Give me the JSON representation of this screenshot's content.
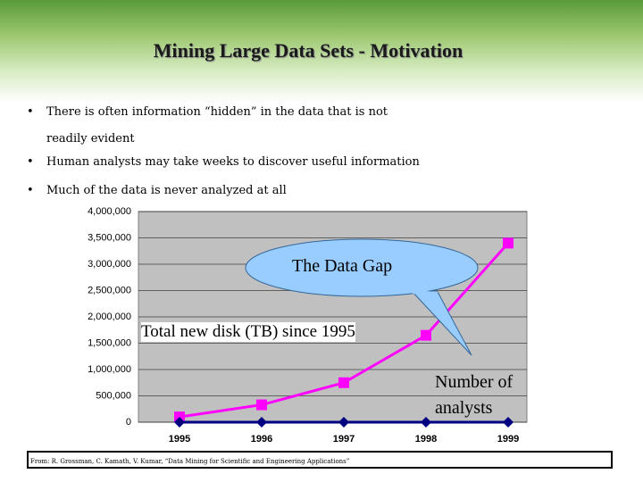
{
  "title": "Mining Large Data Sets - Motivation",
  "bullets": [
    "There is often information “hidden” in the data that is not readily evident",
    "Human analysts may take weeks to discover useful information",
    "Much of the data is never analyzed at all"
  ],
  "chart_data": {
    "type": "line",
    "categories": [
      "1995",
      "1996",
      "1997",
      "1998",
      "1999"
    ],
    "series": [
      {
        "name": "Total new disk (TB) since 1995",
        "color": "#ff00ff",
        "marker": "square",
        "values": [
          100000,
          330000,
          750000,
          1650000,
          3400000
        ]
      },
      {
        "name": "Number of analysts",
        "color": "#000080",
        "marker": "diamond",
        "values": [
          0,
          0,
          0,
          0,
          0
        ]
      }
    ],
    "ylim": [
      0,
      4000000
    ],
    "yticks": [
      {
        "value": 0,
        "label": "0"
      },
      {
        "value": 500000,
        "label": "500,000"
      },
      {
        "value": 1000000,
        "label": "1,000,000"
      },
      {
        "value": 1500000,
        "label": "1,500,000"
      },
      {
        "value": 2000000,
        "label": "2,000,000"
      },
      {
        "value": 2500000,
        "label": "2,500,000"
      },
      {
        "value": 3000000,
        "label": "3,000,000"
      },
      {
        "value": 3500000,
        "label": "3,500,000"
      },
      {
        "value": 4000000,
        "label": "4,000,000"
      }
    ],
    "grid": true,
    "annotation": "The Data Gap"
  },
  "source": "From: R. Grossman, C. Kamath, V. Kumar, “Data Mining for Scientific and Engineering Applications”"
}
